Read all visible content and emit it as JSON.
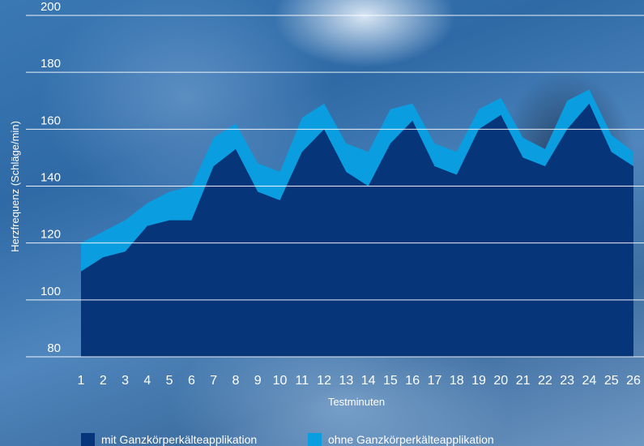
{
  "chart_data": {
    "type": "area",
    "xlabel": "Testminuten",
    "ylabel": "Herzfrequenz (Schläge/min)",
    "ylim": [
      80,
      200
    ],
    "yticks": [
      80,
      100,
      120,
      140,
      160,
      180,
      200
    ],
    "categories": [
      "1",
      "2",
      "3",
      "4",
      "5",
      "6",
      "7",
      "8",
      "9",
      "10",
      "11",
      "12",
      "13",
      "14",
      "15",
      "16",
      "17",
      "18",
      "19",
      "20",
      "21",
      "22",
      "23",
      "24",
      "25",
      "26"
    ],
    "grid": true,
    "legend_position": "bottom",
    "series": [
      {
        "name": "ohne Ganzkörperkälteapplikation",
        "color": "#0a9ee0",
        "values": [
          120,
          124,
          128,
          134,
          138,
          140,
          157,
          162,
          148,
          145,
          164,
          169,
          155,
          152,
          167,
          169,
          155,
          152,
          167,
          171,
          157,
          153,
          170,
          174,
          158,
          152
        ]
      },
      {
        "name": "mit Ganzkörperkälteapplikation",
        "color": "#07357a",
        "values": [
          110,
          115,
          117,
          126,
          128,
          128,
          147,
          153,
          138,
          135,
          152,
          160,
          145,
          140,
          155,
          163,
          147,
          144,
          160,
          165,
          150,
          147,
          160,
          169,
          152,
          147
        ]
      }
    ]
  }
}
